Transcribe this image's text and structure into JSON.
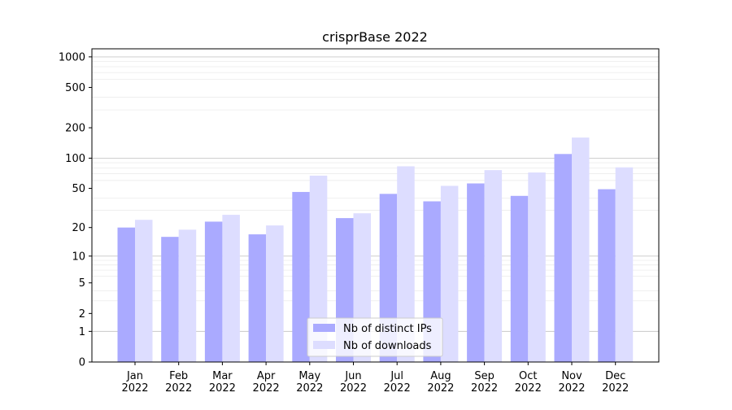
{
  "chart_data": {
    "type": "bar",
    "title": "crisprBase 2022",
    "xlabel": "",
    "ylabel": "",
    "yscale": "log(1+y)",
    "ylim": [
      0,
      1200
    ],
    "grid": true,
    "legend_position": "bottom-center",
    "categories": [
      "Jan\n2022",
      "Feb\n2022",
      "Mar\n2022",
      "Apr\n2022",
      "May\n2022",
      "Jun\n2022",
      "Jul\n2022",
      "Aug\n2022",
      "Sep\n2022",
      "Oct\n2022",
      "Nov\n2022",
      "Dec\n2022"
    ],
    "category_lines": [
      [
        "Jan",
        "2022"
      ],
      [
        "Feb",
        "2022"
      ],
      [
        "Mar",
        "2022"
      ],
      [
        "Apr",
        "2022"
      ],
      [
        "May",
        "2022"
      ],
      [
        "Jun",
        "2022"
      ],
      [
        "Jul",
        "2022"
      ],
      [
        "Aug",
        "2022"
      ],
      [
        "Sep",
        "2022"
      ],
      [
        "Oct",
        "2022"
      ],
      [
        "Nov",
        "2022"
      ],
      [
        "Dec",
        "2022"
      ]
    ],
    "yticks": [
      0,
      1,
      2,
      5,
      10,
      20,
      50,
      100,
      200,
      500,
      1000
    ],
    "ytick_labels": [
      "0",
      "1",
      "2",
      "5",
      "10",
      "20",
      "50",
      "100",
      "200",
      "500",
      "1000"
    ],
    "series": [
      {
        "name": "Nb of distinct IPs",
        "color": "#aaaaff",
        "values": [
          20,
          16,
          23,
          17,
          46,
          25,
          44,
          37,
          56,
          42,
          110,
          49
        ]
      },
      {
        "name": "Nb of downloads",
        "color": "#ddddff",
        "values": [
          24,
          19,
          27,
          21,
          67,
          28,
          83,
          53,
          76,
          72,
          160,
          81
        ]
      }
    ]
  }
}
